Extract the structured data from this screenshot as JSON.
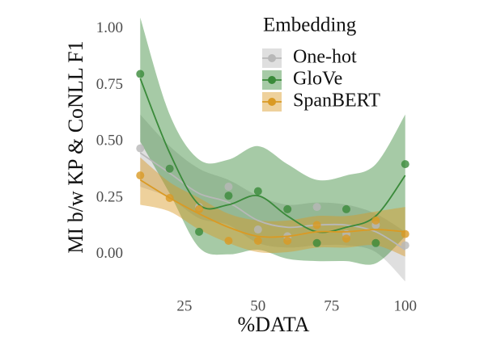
{
  "chart_data": {
    "type": "scatter",
    "x_label": "%DATA",
    "y_label": "MI b/w KP & CoNLL F1",
    "legend_title": "Embedding",
    "legend_position": "upper right",
    "x": [
      10,
      20,
      30,
      40,
      50,
      60,
      70,
      80,
      90,
      100
    ],
    "xlim": [
      8,
      102
    ],
    "xticks": [
      25,
      50,
      75,
      100
    ],
    "ylim": [
      -0.13,
      1.06
    ],
    "yticks": [
      {
        "value": 0,
        "label": "0.00"
      },
      {
        "value": 0.25,
        "label": "0.25"
      },
      {
        "value": 0.5,
        "label": "0.50"
      },
      {
        "value": 0.75,
        "label": "0.75"
      },
      {
        "value": 1,
        "label": "1.00"
      }
    ],
    "series": [
      {
        "name": "One-hot",
        "color": "#b8b8b8",
        "values": [
          0.47,
          0.38,
          0.21,
          0.3,
          0.11,
          0.08,
          0.21,
          0.09,
          0.13,
          0.04
        ],
        "fit": [
          0.45,
          0.36,
          0.27,
          0.23,
          0.15,
          0.12,
          0.13,
          0.13,
          0.1,
          0.02
        ],
        "lower": [
          0.3,
          0.25,
          0.16,
          0.13,
          0.05,
          0.03,
          0.04,
          0.04,
          0.01,
          -0.12
        ],
        "upper": [
          0.62,
          0.48,
          0.38,
          0.33,
          0.26,
          0.22,
          0.23,
          0.22,
          0.18,
          0.1
        ]
      },
      {
        "name": "GloVe",
        "color": "#3a8a3a",
        "values": [
          0.8,
          0.38,
          0.1,
          0.26,
          0.28,
          0.2,
          0.05,
          0.2,
          0.05,
          0.4
        ],
        "fit": [
          0.78,
          0.45,
          0.22,
          0.22,
          0.26,
          0.17,
          0.1,
          0.12,
          0.17,
          0.35
        ],
        "lower": [
          0.5,
          0.27,
          0.03,
          0.0,
          0.02,
          -0.02,
          -0.03,
          -0.03,
          -0.04,
          0.08
        ],
        "upper": [
          1.05,
          0.62,
          0.42,
          0.42,
          0.48,
          0.4,
          0.33,
          0.35,
          0.4,
          0.62
        ]
      },
      {
        "name": "SpanBERT",
        "color": "#da9a24",
        "values": [
          0.35,
          0.25,
          0.2,
          0.06,
          0.06,
          0.06,
          0.13,
          0.07,
          0.15,
          0.09
        ],
        "fit": [
          0.33,
          0.25,
          0.18,
          0.12,
          0.08,
          0.08,
          0.1,
          0.1,
          0.11,
          0.1
        ],
        "lower": [
          0.22,
          0.19,
          0.11,
          0.05,
          0.01,
          0.01,
          0.03,
          0.03,
          0.04,
          -0.01
        ],
        "upper": [
          0.43,
          0.32,
          0.25,
          0.18,
          0.15,
          0.15,
          0.17,
          0.17,
          0.19,
          0.21
        ]
      }
    ]
  }
}
